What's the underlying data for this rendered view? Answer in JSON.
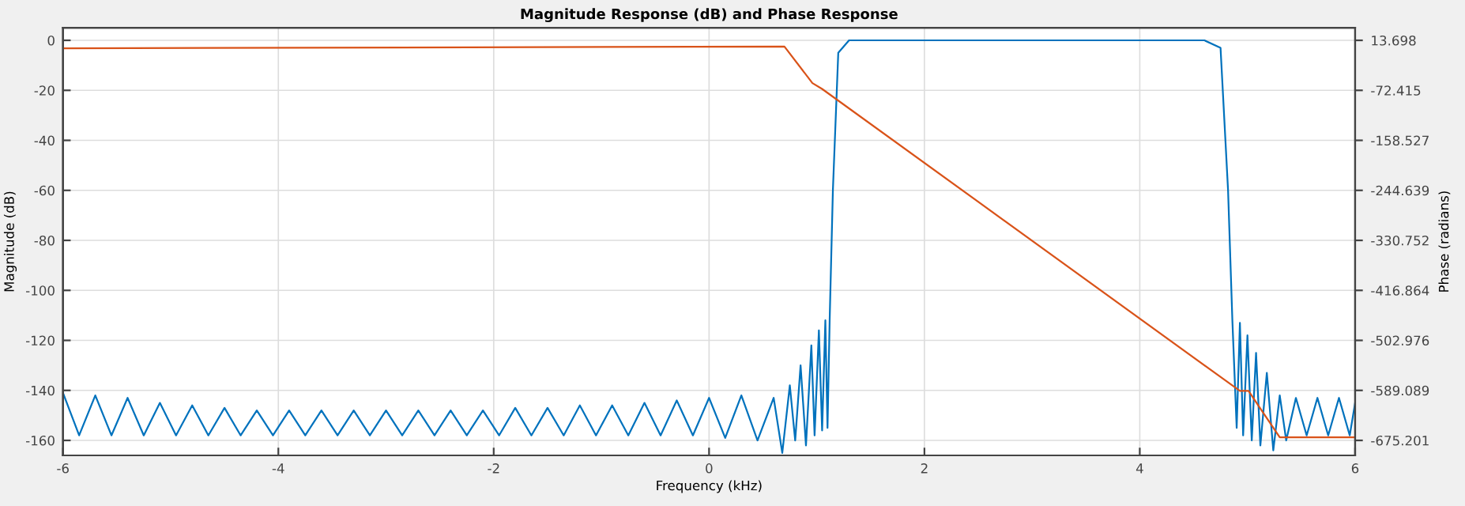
{
  "chart_data": {
    "type": "line",
    "title": "Magnitude Response (dB) and Phase Response",
    "xlabel": "Frequency (kHz)",
    "ylabel": "Magnitude (dB)",
    "y2label": "Phase (radians)",
    "xlim": [
      -6,
      6
    ],
    "xticks": [
      -6,
      -4,
      -2,
      0,
      2,
      4,
      6
    ],
    "ylim": [
      -166,
      5
    ],
    "yticks": [
      -160,
      -140,
      -120,
      -100,
      -80,
      -60,
      -40,
      -20,
      0
    ],
    "y2lim": [
      -701.03,
      35.23
    ],
    "y2ticks": [
      -675.201,
      -589.089,
      -502.976,
      -416.864,
      -330.752,
      -244.639,
      -158.527,
      -72.415,
      13.698
    ],
    "grid": true,
    "series": [
      {
        "color": "#0072bd",
        "x": [
          -6.0,
          -5.85,
          -5.7,
          -5.55,
          -5.4,
          -5.25,
          -5.1,
          -4.95,
          -4.8,
          -4.65,
          -4.5,
          -4.35,
          -4.2,
          -4.05,
          -3.9,
          -3.75,
          -3.6,
          -3.45,
          -3.3,
          -3.15,
          -3.0,
          -2.85,
          -2.7,
          -2.55,
          -2.4,
          -2.25,
          -2.1,
          -1.95,
          -1.8,
          -1.65,
          -1.5,
          -1.35,
          -1.2,
          -1.05,
          -0.9,
          -0.75,
          -0.6,
          -0.45,
          -0.3,
          -0.15,
          0.0,
          0.15,
          0.3,
          0.45,
          0.6,
          0.68,
          0.75,
          0.8,
          0.85,
          0.9,
          0.95,
          0.98,
          1.02,
          1.05,
          1.08,
          1.1,
          1.12,
          1.15,
          1.2,
          1.3,
          4.6,
          4.75,
          4.82,
          4.86,
          4.9,
          4.93,
          4.96,
          5.0,
          5.04,
          5.08,
          5.12,
          5.18,
          5.24,
          5.3,
          5.36,
          5.45,
          5.55,
          5.65,
          5.75,
          5.85,
          5.95,
          6.0
        ],
        "values": [
          -141,
          -158,
          -142,
          -158,
          -143,
          -158,
          -145,
          -158,
          -146,
          -158,
          -147,
          -158,
          -148,
          -158,
          -148,
          -158,
          -148,
          -158,
          -148,
          -158,
          -148,
          -158,
          -148,
          -158,
          -148,
          -158,
          -148,
          -158,
          -147,
          -158,
          -147,
          -158,
          -146,
          -158,
          -146,
          -158,
          -145,
          -158,
          -144,
          -158,
          -143,
          -159,
          -142,
          -160,
          -143,
          -165,
          -138,
          -160,
          -130,
          -162,
          -122,
          -158,
          -116,
          -156,
          -112,
          -155,
          -112,
          -60,
          -5,
          0,
          0,
          -3,
          -60,
          -112,
          -155,
          -113,
          -158,
          -118,
          -160,
          -125,
          -162,
          -133,
          -164,
          -142,
          -160,
          -143,
          -158,
          -143,
          -158,
          -143,
          -158,
          -145
        ]
      },
      {
        "color": "#d95319",
        "axis": "y2",
        "x": [
          -6.0,
          0.7,
          0.96,
          1.05,
          4.93,
          5.01,
          5.3,
          6.0
        ],
        "values": [
          0,
          3,
          -60,
          -70,
          -590,
          -590,
          -670,
          -670
        ]
      }
    ]
  }
}
